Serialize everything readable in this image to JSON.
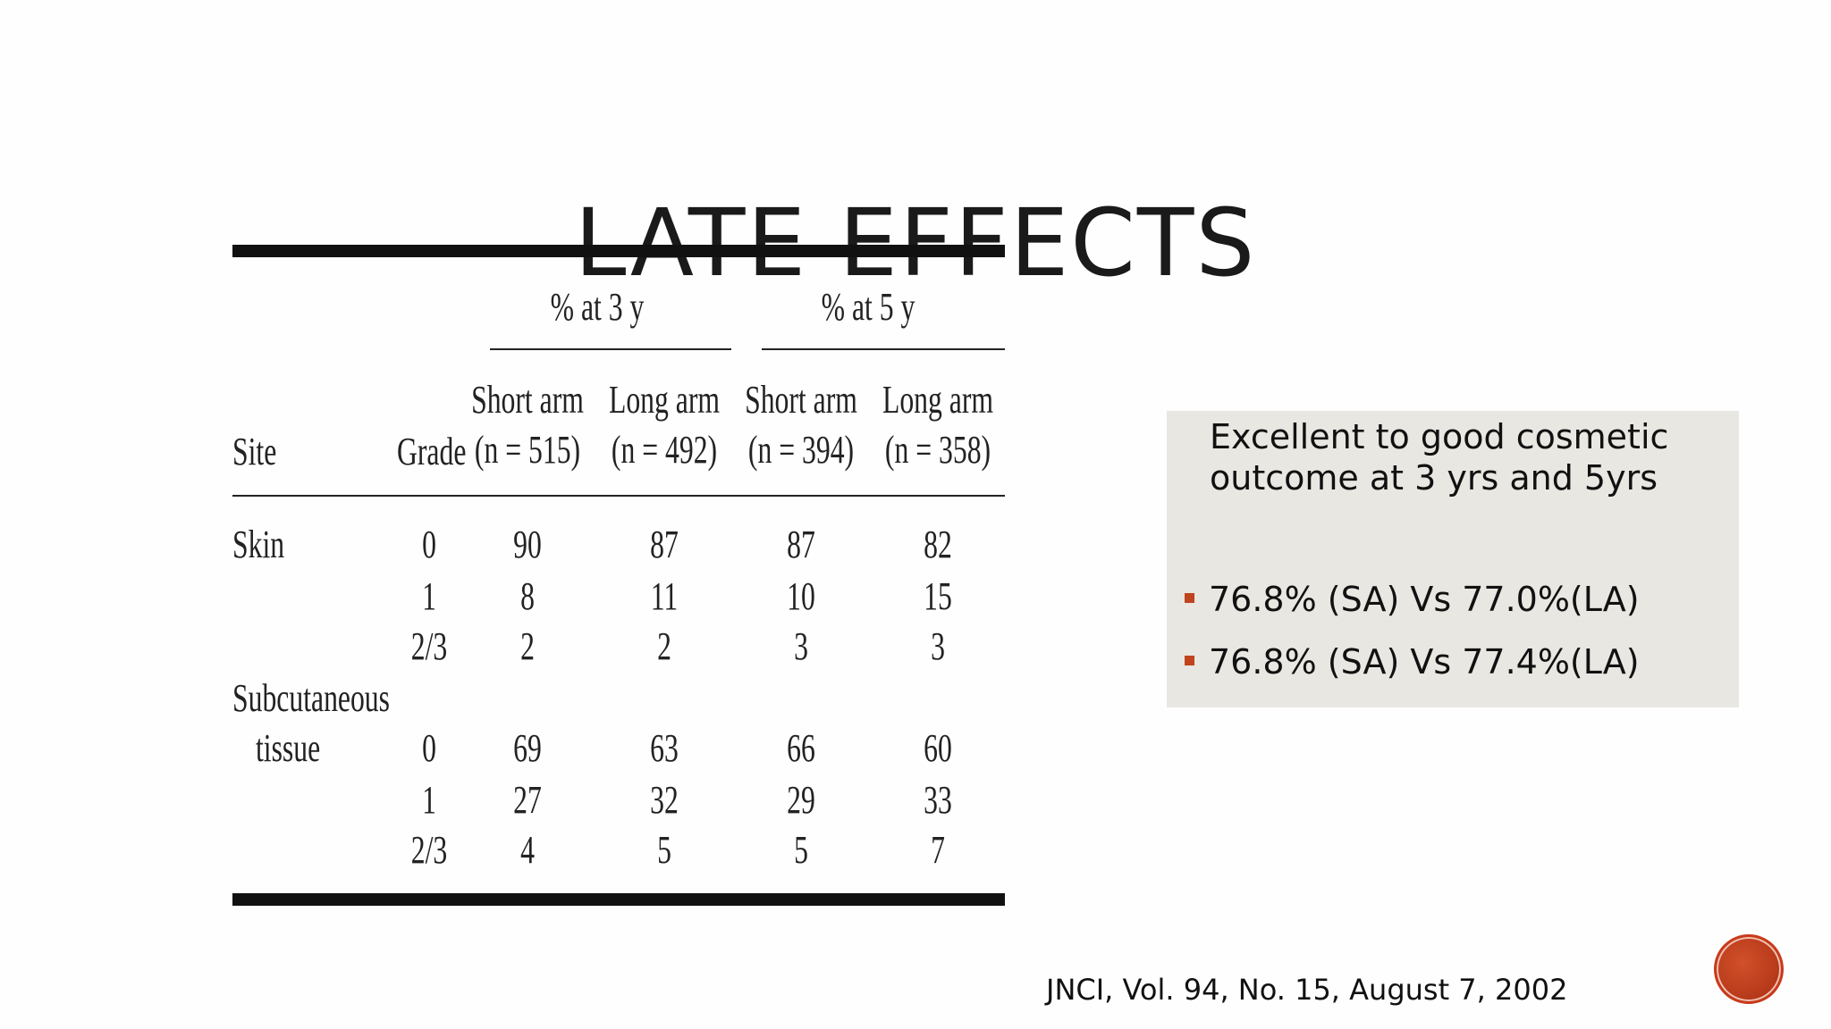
{
  "slide": {
    "title": "LATE EFFECTS",
    "citation": "JNCI, Vol. 94, No. 15, August 7, 2002"
  },
  "table": {
    "group_headers": [
      "% at 3 y",
      "% at 5 y"
    ],
    "col_site": "Site",
    "col_grade": "Grade",
    "arms": [
      {
        "name": "Short arm",
        "n": "(n = 515)"
      },
      {
        "name": "Long arm",
        "n": "(n = 492)"
      },
      {
        "name": "Short arm",
        "n": "(n = 394)"
      },
      {
        "name": "Long arm",
        "n": "(n = 358)"
      }
    ],
    "rows": [
      {
        "site": "Skin",
        "grade": "0",
        "values": [
          "90",
          "87",
          "87",
          "82"
        ]
      },
      {
        "site": "",
        "grade": "1",
        "values": [
          "8",
          "11",
          "10",
          "15"
        ]
      },
      {
        "site": "",
        "grade": "2/3",
        "values": [
          "2",
          "2",
          "3",
          "3"
        ]
      },
      {
        "site": "Subcutaneous",
        "grade": "",
        "values": [
          "",
          "",
          "",
          ""
        ]
      },
      {
        "site": "tissue",
        "grade": "0",
        "values": [
          "69",
          "63",
          "66",
          "60"
        ]
      },
      {
        "site": "",
        "grade": "1",
        "values": [
          "27",
          "32",
          "29",
          "33"
        ]
      },
      {
        "site": "",
        "grade": "2/3",
        "values": [
          "4",
          "5",
          "5",
          "7"
        ]
      }
    ]
  },
  "info_box": {
    "heading": "Excellent to good cosmetic outcome at 3 yrs and 5yrs",
    "bullets": [
      "76.8% (SA) Vs 77.0%(LA)",
      "76.8% (SA) Vs 77.4%(LA)"
    ]
  },
  "colors": {
    "bullet_accent": "#c0441e",
    "info_box_bg": "#e9e7e2",
    "nav_button": "#b83a1a"
  }
}
